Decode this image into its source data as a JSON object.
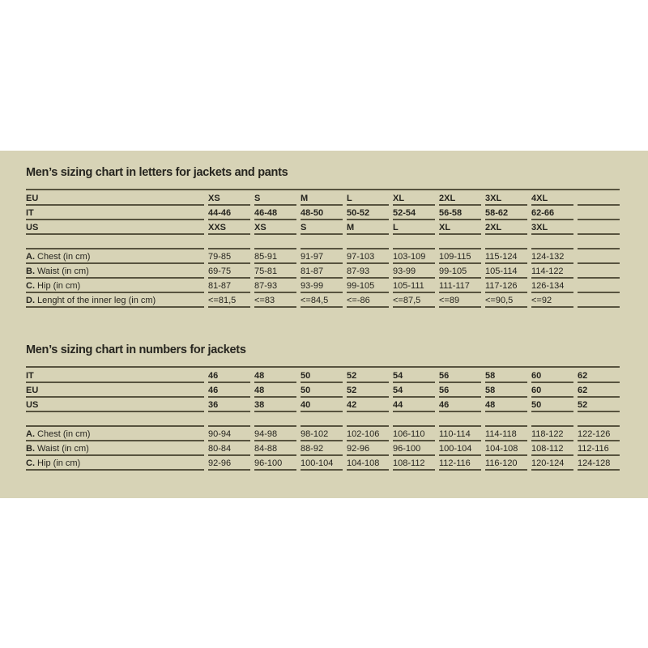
{
  "tables": [
    {
      "title": "Men’s sizing chart in letters for jackets and pants",
      "header_rows": [
        {
          "label": "EU",
          "values": [
            "XS",
            "S",
            "M",
            "L",
            "XL",
            "2XL",
            "3XL",
            "4XL",
            ""
          ]
        },
        {
          "label": "IT",
          "values": [
            "44-46",
            "46-48",
            "48-50",
            "50-52",
            "52-54",
            "56-58",
            "58-62",
            "62-66",
            ""
          ]
        },
        {
          "label": "US",
          "values": [
            "XXS",
            "XS",
            "S",
            "M",
            "L",
            "XL",
            "2XL",
            "3XL",
            ""
          ]
        }
      ],
      "measure_rows": [
        {
          "letter": "A.",
          "label": " Chest (in cm)",
          "values": [
            "79-85",
            "85-91",
            "91-97",
            "97-103",
            "103-109",
            "109-115",
            "115-124",
            "124-132",
            ""
          ]
        },
        {
          "letter": "B.",
          "label": " Waist (in cm)",
          "values": [
            "69-75",
            "75-81",
            "81-87",
            "87-93",
            "93-99",
            "99-105",
            "105-114",
            "114-122",
            ""
          ]
        },
        {
          "letter": "C.",
          "label": " Hip (in cm)",
          "values": [
            "81-87",
            "87-93",
            "93-99",
            "99-105",
            "105-111",
            "111-117",
            "117-126",
            "126-134",
            ""
          ]
        },
        {
          "letter": "D.",
          "label": " Lenght of the inner leg (in cm)",
          "values": [
            "<=81,5",
            "<=83",
            "<=84,5",
            "<=-86",
            "<=87,5",
            "<=89",
            "<=90,5",
            "<=92",
            ""
          ]
        }
      ]
    },
    {
      "title": "Men’s sizing chart in numbers for jackets",
      "header_rows": [
        {
          "label": "IT",
          "values": [
            "46",
            "48",
            "50",
            "52",
            "54",
            "56",
            "58",
            "60",
            "62"
          ]
        },
        {
          "label": "EU",
          "values": [
            "46",
            "48",
            "50",
            "52",
            "54",
            "56",
            "58",
            "60",
            "62"
          ]
        },
        {
          "label": "US",
          "values": [
            "36",
            "38",
            "40",
            "42",
            "44",
            "46",
            "48",
            "50",
            "52"
          ]
        }
      ],
      "measure_rows": [
        {
          "letter": "A.",
          "label": " Chest (in cm)",
          "values": [
            "90-94",
            "94-98",
            "98-102",
            "102-106",
            "106-110",
            "110-114",
            "114-118",
            "118-122",
            "122-126"
          ]
        },
        {
          "letter": "B.",
          "label": " Waist (in cm)",
          "values": [
            "80-84",
            "84-88",
            "88-92",
            "92-96",
            "96-100",
            "100-104",
            "104-108",
            "108-112",
            "112-116"
          ]
        },
        {
          "letter": "C.",
          "label": " Hip (in cm)",
          "values": [
            "92-96",
            "96-100",
            "100-104",
            "104-108",
            "108-112",
            "112-116",
            "116-120",
            "120-124",
            "124-128"
          ]
        }
      ]
    }
  ]
}
